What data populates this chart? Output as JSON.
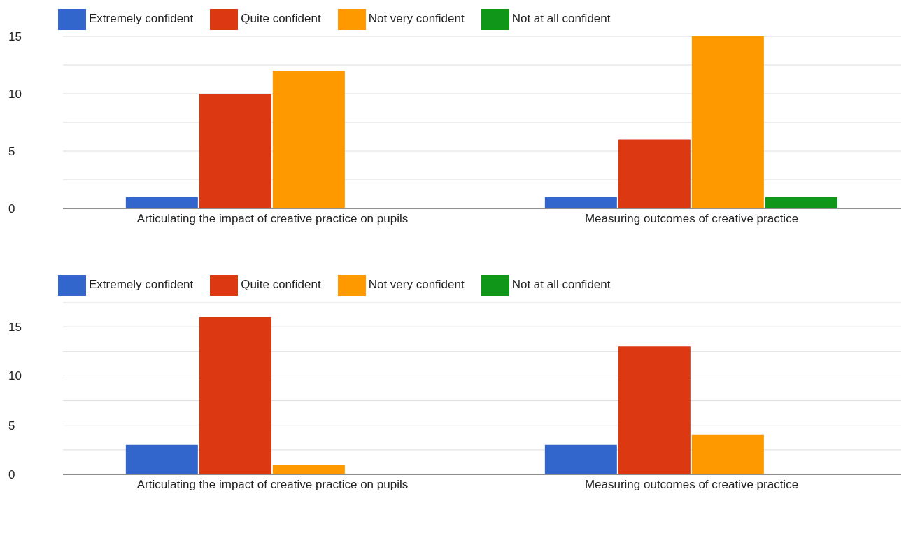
{
  "chart_data": [
    {
      "type": "bar",
      "categories": [
        "Articulating the impact of creative practice on pupils",
        "Measuring outcomes of creative practice"
      ],
      "series": [
        {
          "name": "Extremely confident",
          "color": "#3366cc",
          "values": [
            1,
            1
          ]
        },
        {
          "name": "Quite confident",
          "color": "#dc3912",
          "values": [
            10,
            6
          ]
        },
        {
          "name": "Not very confident",
          "color": "#ff9900",
          "values": [
            12,
            15
          ]
        },
        {
          "name": "Not at all confident",
          "color": "#109618",
          "values": [
            0,
            1
          ]
        }
      ],
      "ylim": [
        0,
        15
      ],
      "yticks": [
        0,
        {
          "value": 2.5,
          "label": null
        },
        5,
        {
          "value": 7.5,
          "label": null
        },
        10,
        {
          "value": 12.5,
          "label": null
        },
        15
      ],
      "grid": "y",
      "legend": "top left"
    },
    {
      "type": "bar",
      "categories": [
        "Articulating the impact of creative practice on pupils",
        "Measuring outcomes of creative practice"
      ],
      "series": [
        {
          "name": "Extremely confident",
          "color": "#3366cc",
          "values": [
            3,
            3
          ]
        },
        {
          "name": "Quite confident",
          "color": "#dc3912",
          "values": [
            16,
            13
          ]
        },
        {
          "name": "Not very confident",
          "color": "#ff9900",
          "values": [
            1,
            4
          ]
        },
        {
          "name": "Not at all confident",
          "color": "#109618",
          "values": [
            0,
            0
          ]
        }
      ],
      "ylim": [
        0,
        17.5
      ],
      "yticks": [
        0,
        {
          "value": 2.5,
          "label": null
        },
        5,
        {
          "value": 7.5,
          "label": null
        },
        10,
        {
          "value": 12.5,
          "label": null
        },
        15,
        {
          "value": 17.5,
          "label": null
        }
      ],
      "grid": "y",
      "legend": "top left"
    }
  ]
}
